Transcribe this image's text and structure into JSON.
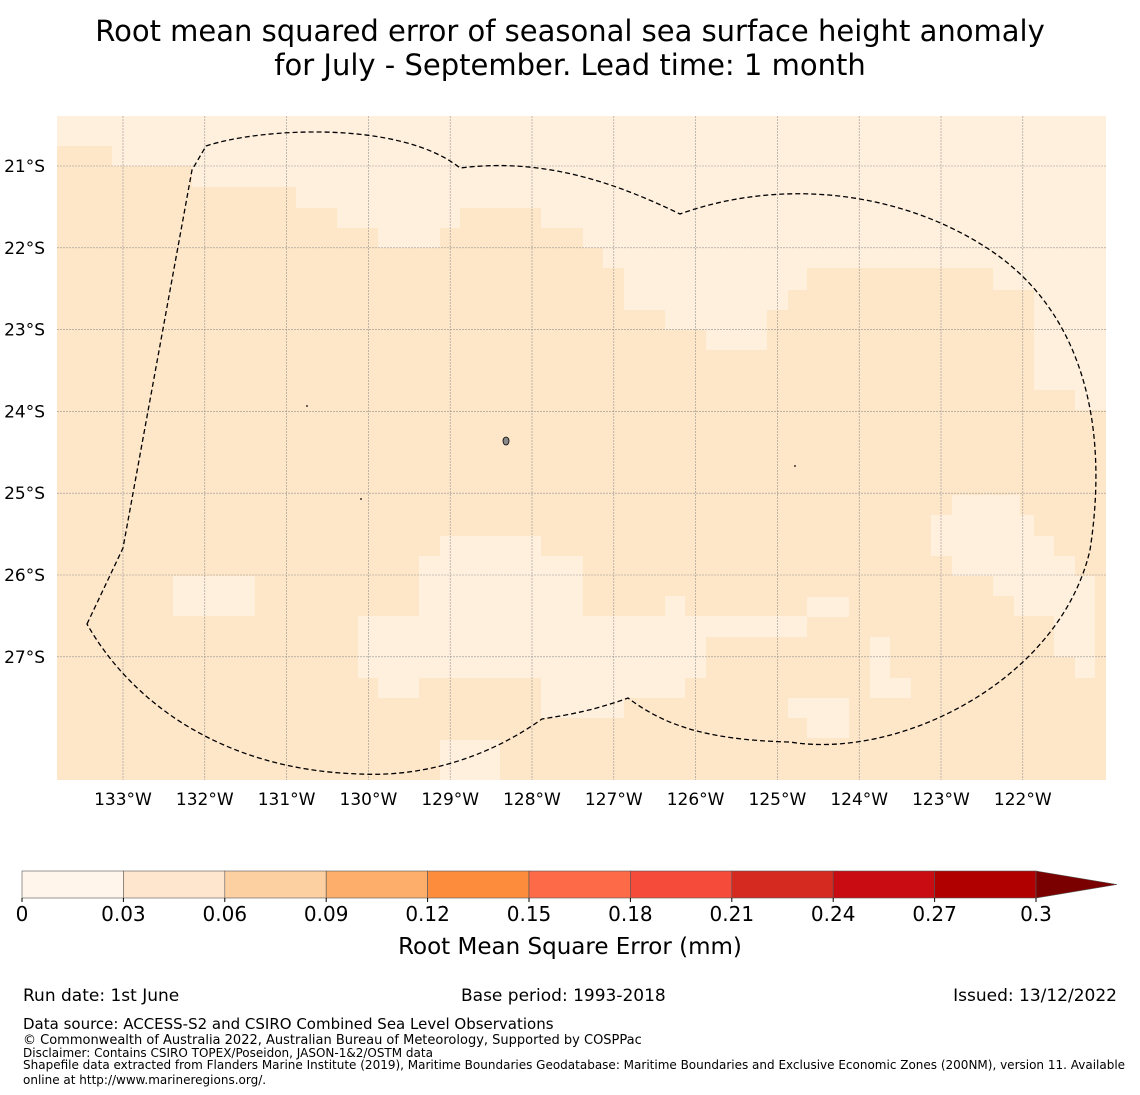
{
  "title": {
    "line1": "Root mean squared error of seasonal sea surface height anomaly",
    "line2": "for July - September. Lead time: 1 month"
  },
  "map": {
    "lat_labels": [
      "21°S",
      "22°S",
      "23°S",
      "24°S",
      "25°S",
      "26°S",
      "27°S"
    ],
    "lon_labels": [
      "133°W",
      "132°W",
      "131°W",
      "130°W",
      "129°W",
      "128°W",
      "127°W",
      "126°W",
      "125°W",
      "124°W",
      "123°W",
      "122°W"
    ],
    "colors": {
      "band_0_003": "#fff0de",
      "band_003_006": "#fee6c9",
      "boundary": "#000000"
    }
  },
  "colorbar": {
    "ticks": [
      "0",
      "0.03",
      "0.06",
      "0.09",
      "0.12",
      "0.15",
      "0.18",
      "0.21",
      "0.24",
      "0.27",
      "0.3"
    ],
    "colors": [
      "#fff5eb",
      "#fee6ce",
      "#fdd0a2",
      "#fdae6b",
      "#fd8d3c",
      "#fd6a48",
      "#f44b3b",
      "#d42a20",
      "#c90b12",
      "#b00000"
    ],
    "extend_color": "#7a0000",
    "label": "Root Mean Square Error (mm)"
  },
  "footer": {
    "run_date": "Run date: 1st June",
    "base_period": "Base period: 1993-2018",
    "issued": "Issued: 13/12/2022",
    "data_source": "Data source: ACCESS-S2 and CSIRO Combined Sea Level Observations",
    "copyright": "© Commonwealth of Australia 2022, Australian Bureau of Meteorology, Supported by COSPPac",
    "disclaimer": "Disclaimer: Contains CSIRO TOPEX/Poseidon, JASON-1&2/OSTM data",
    "shapefile": "Shapefile data extracted from Flanders Marine Institute (2019), Maritime Boundaries Geodatabase: Maritime Boundaries and Exclusive Economic Zones (200NM), version 11. Available online at http://www.marineregions.org/."
  }
}
